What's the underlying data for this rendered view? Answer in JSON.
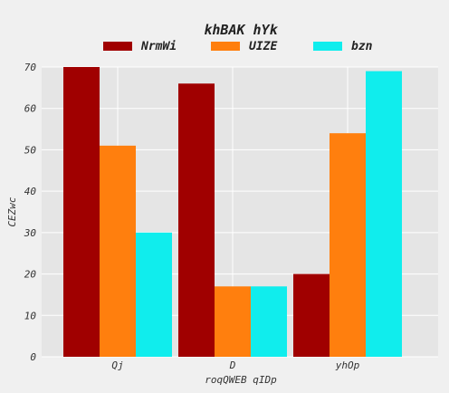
{
  "chart_data": {
    "type": "bar",
    "title": "khBAK hYk",
    "xlabel": "roqQWEB qIDp",
    "ylabel": "CEZwc",
    "categories": [
      "Qj",
      "D",
      "yhOp"
    ],
    "series": [
      {
        "name": "NrmWi",
        "values": [
          70,
          66,
          20
        ],
        "color": "#a00000"
      },
      {
        "name": "UIZE",
        "values": [
          51,
          17,
          54
        ],
        "color": "#ff7f0e"
      },
      {
        "name": "bzn",
        "values": [
          30,
          17,
          69
        ],
        "color": "#10eded"
      }
    ],
    "ylim": [
      0,
      70
    ],
    "yticks": [
      0,
      10,
      20,
      30,
      40,
      50,
      60,
      70
    ],
    "grid": true,
    "legend_position": "top"
  },
  "colors": {
    "plot_background": "#e5e5e5",
    "page_background": "#f0f0f0",
    "grid": "#ffffff"
  }
}
